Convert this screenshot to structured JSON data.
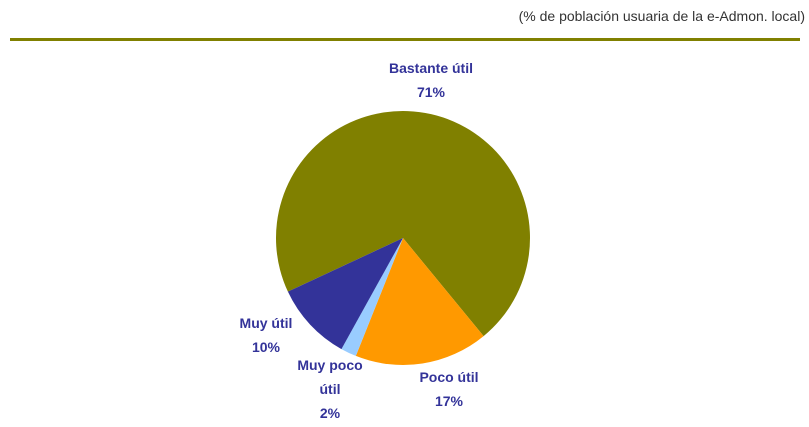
{
  "chart_data": {
    "type": "pie",
    "subtitle": "(% de población usuaria de la e-Admon. local)",
    "categories": [
      "Bastante útil",
      "Poco útil",
      "Muy poco útil",
      "Muy útil"
    ],
    "values": [
      71,
      17,
      2,
      10
    ],
    "value_labels": [
      "71%",
      "17%",
      "2%",
      "10%"
    ],
    "colors": [
      "#808000",
      "#ff9900",
      "#99ccff",
      "#333399"
    ]
  }
}
